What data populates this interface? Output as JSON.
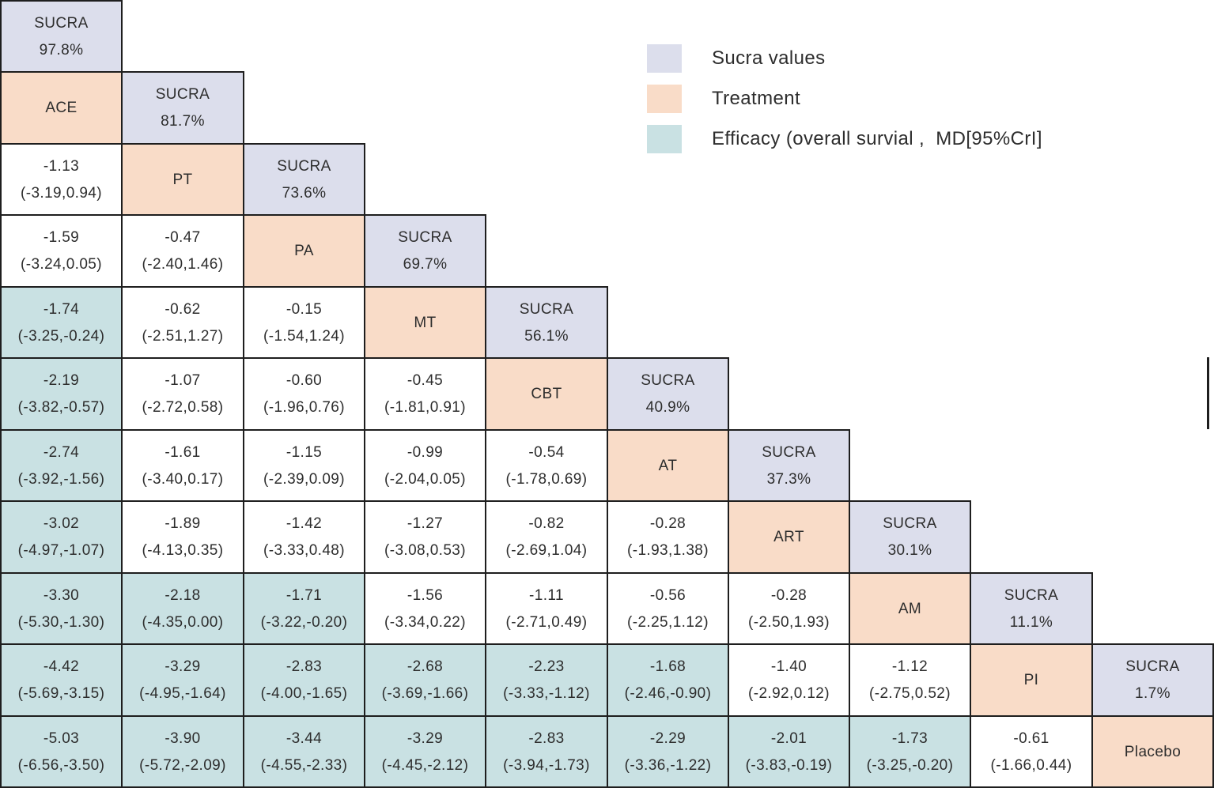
{
  "colors": {
    "sucra_fill": "#dcdeec",
    "treatment_fill": "#f9dcc8",
    "significant_fill": "#c9e1e3",
    "neutral_fill": "#ffffff",
    "border": "#1e1e1e",
    "text": "#2d2d2d",
    "background": "#ffffff"
  },
  "legend": {
    "items": [
      {
        "label": "Sucra values",
        "swatch": "sucra_fill"
      },
      {
        "label": "Treatment",
        "swatch": "treatment_fill"
      },
      {
        "label": "Efficacy (overall survial ,  MD[95%CrI]",
        "swatch": "significant_fill"
      }
    ]
  },
  "chart_data": {
    "type": "table",
    "title": "",
    "layout": "lower-triangle league table, 11 rows x 10 columns; SUCRA cell on diagonal above each treatment label; comparison cells teal when 95%CrI excludes 0",
    "labels": {
      "sucra_cell_title": "SUCRA"
    },
    "treatments": [
      {
        "name": "ACE",
        "sucra": 97.8
      },
      {
        "name": "PT",
        "sucra": 81.7
      },
      {
        "name": "PA",
        "sucra": 73.6
      },
      {
        "name": "MT",
        "sucra": 69.7
      },
      {
        "name": "CBT",
        "sucra": 56.1
      },
      {
        "name": "AT",
        "sucra": 40.9
      },
      {
        "name": "ART",
        "sucra": 37.3
      },
      {
        "name": "AM",
        "sucra": 30.1
      },
      {
        "name": "PI",
        "sucra": 11.1
      },
      {
        "name": "Placebo",
        "sucra": 1.7
      }
    ],
    "comparisons": [
      {
        "treatment": "PT",
        "cells": [
          {
            "vs": "ACE",
            "md": -1.13,
            "ci": [
              -3.19,
              0.94
            ],
            "significant": false
          }
        ]
      },
      {
        "treatment": "PA",
        "cells": [
          {
            "vs": "ACE",
            "md": -1.59,
            "ci": [
              -3.24,
              0.05
            ],
            "significant": false
          },
          {
            "vs": "PT",
            "md": -0.47,
            "ci": [
              -2.4,
              1.46
            ],
            "significant": false
          }
        ]
      },
      {
        "treatment": "MT",
        "cells": [
          {
            "vs": "ACE",
            "md": -1.74,
            "ci": [
              -3.25,
              -0.24
            ],
            "significant": true
          },
          {
            "vs": "PT",
            "md": -0.62,
            "ci": [
              -2.51,
              1.27
            ],
            "significant": false
          },
          {
            "vs": "PA",
            "md": -0.15,
            "ci": [
              -1.54,
              1.24
            ],
            "significant": false
          }
        ]
      },
      {
        "treatment": "CBT",
        "cells": [
          {
            "vs": "ACE",
            "md": -2.19,
            "ci": [
              -3.82,
              -0.57
            ],
            "significant": true
          },
          {
            "vs": "PT",
            "md": -1.07,
            "ci": [
              -2.72,
              0.58
            ],
            "significant": false
          },
          {
            "vs": "PA",
            "md": -0.6,
            "ci": [
              -1.96,
              0.76
            ],
            "significant": false
          },
          {
            "vs": "MT",
            "md": -0.45,
            "ci": [
              -1.81,
              0.91
            ],
            "significant": false
          }
        ]
      },
      {
        "treatment": "AT",
        "cells": [
          {
            "vs": "ACE",
            "md": -2.74,
            "ci": [
              -3.92,
              -1.56
            ],
            "significant": true
          },
          {
            "vs": "PT",
            "md": -1.61,
            "ci": [
              -3.4,
              0.17
            ],
            "significant": false
          },
          {
            "vs": "PA",
            "md": -1.15,
            "ci": [
              -2.39,
              0.09
            ],
            "significant": false
          },
          {
            "vs": "MT",
            "md": -0.99,
            "ci": [
              -2.04,
              0.05
            ],
            "significant": false
          },
          {
            "vs": "CBT",
            "md": -0.54,
            "ci": [
              -1.78,
              0.69
            ],
            "significant": false
          }
        ]
      },
      {
        "treatment": "ART",
        "cells": [
          {
            "vs": "ACE",
            "md": -3.02,
            "ci": [
              -4.97,
              -1.07
            ],
            "significant": true
          },
          {
            "vs": "PT",
            "md": -1.89,
            "ci": [
              -4.13,
              0.35
            ],
            "significant": false
          },
          {
            "vs": "PA",
            "md": -1.42,
            "ci": [
              -3.33,
              0.48
            ],
            "significant": false
          },
          {
            "vs": "MT",
            "md": -1.27,
            "ci": [
              -3.08,
              0.53
            ],
            "significant": false
          },
          {
            "vs": "CBT",
            "md": -0.82,
            "ci": [
              -2.69,
              1.04
            ],
            "significant": false
          },
          {
            "vs": "AT",
            "md": -0.28,
            "ci": [
              -1.93,
              1.38
            ],
            "significant": false
          }
        ]
      },
      {
        "treatment": "AM",
        "cells": [
          {
            "vs": "ACE",
            "md": -3.3,
            "ci": [
              -5.3,
              -1.3
            ],
            "significant": true
          },
          {
            "vs": "PT",
            "md": -2.18,
            "ci": [
              -4.35,
              0.0
            ],
            "significant": true
          },
          {
            "vs": "PA",
            "md": -1.71,
            "ci": [
              -3.22,
              -0.2
            ],
            "significant": true
          },
          {
            "vs": "MT",
            "md": -1.56,
            "ci": [
              -3.34,
              0.22
            ],
            "significant": false
          },
          {
            "vs": "CBT",
            "md": -1.11,
            "ci": [
              -2.71,
              0.49
            ],
            "significant": false
          },
          {
            "vs": "AT",
            "md": -0.56,
            "ci": [
              -2.25,
              1.12
            ],
            "significant": false
          },
          {
            "vs": "ART",
            "md": -0.28,
            "ci": [
              -2.5,
              1.93
            ],
            "significant": false
          }
        ]
      },
      {
        "treatment": "PI",
        "cells": [
          {
            "vs": "ACE",
            "md": -4.42,
            "ci": [
              -5.69,
              -3.15
            ],
            "significant": true
          },
          {
            "vs": "PT",
            "md": -3.29,
            "ci": [
              -4.95,
              -1.64
            ],
            "significant": true
          },
          {
            "vs": "PA",
            "md": -2.83,
            "ci": [
              -4.0,
              -1.65
            ],
            "significant": true
          },
          {
            "vs": "MT",
            "md": -2.68,
            "ci": [
              -3.69,
              -1.66
            ],
            "significant": true
          },
          {
            "vs": "CBT",
            "md": -2.23,
            "ci": [
              -3.33,
              -1.12
            ],
            "significant": true
          },
          {
            "vs": "AT",
            "md": -1.68,
            "ci": [
              -2.46,
              -0.9
            ],
            "significant": true
          },
          {
            "vs": "ART",
            "md": -1.4,
            "ci": [
              -2.92,
              0.12
            ],
            "significant": false
          },
          {
            "vs": "AM",
            "md": -1.12,
            "ci": [
              -2.75,
              0.52
            ],
            "significant": false
          }
        ]
      },
      {
        "treatment": "Placebo",
        "cells": [
          {
            "vs": "ACE",
            "md": -5.03,
            "ci": [
              -6.56,
              -3.5
            ],
            "significant": true
          },
          {
            "vs": "PT",
            "md": -3.9,
            "ci": [
              -5.72,
              -2.09
            ],
            "significant": true
          },
          {
            "vs": "PA",
            "md": -3.44,
            "ci": [
              -4.55,
              -2.33
            ],
            "significant": true
          },
          {
            "vs": "MT",
            "md": -3.29,
            "ci": [
              -4.45,
              -2.12
            ],
            "significant": true
          },
          {
            "vs": "CBT",
            "md": -2.83,
            "ci": [
              -3.94,
              -1.73
            ],
            "significant": true
          },
          {
            "vs": "AT",
            "md": -2.29,
            "ci": [
              -3.36,
              -1.22
            ],
            "significant": true
          },
          {
            "vs": "ART",
            "md": -2.01,
            "ci": [
              -3.83,
              -0.19
            ],
            "significant": true
          },
          {
            "vs": "AM",
            "md": -1.73,
            "ci": [
              -3.25,
              -0.2
            ],
            "significant": true
          },
          {
            "vs": "PI",
            "md": -0.61,
            "ci": [
              -1.66,
              0.44
            ],
            "significant": false
          }
        ]
      }
    ]
  }
}
